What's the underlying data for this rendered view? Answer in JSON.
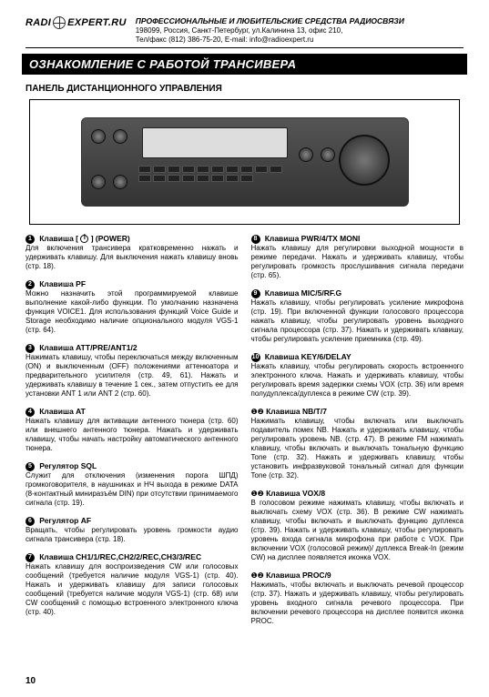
{
  "header": {
    "logo_left": "RADI",
    "logo_right": "EXPERT.RU",
    "line1": "ПРОФЕССИОНАЛЬНЫЕ И ЛЮБИТЕЛЬСКИЕ СРЕДСТВА РАДИОСВЯЗИ",
    "line2": "198099, Россия, Санкт-Петербург, ул.Калинина 13, офис 210,",
    "line3": "Тел/факс (812) 386-75-20, E-mail: info@radioexpert.ru"
  },
  "title": "ОЗНАКОМЛЕНИЕ С РАБОТОЙ ТРАНСИВЕРА",
  "subtitle": "ПАНЕЛЬ ДИСТАНЦИОННОГО УПРАВЛЕНИЯ",
  "left": [
    {
      "num": "1",
      "h": "Клавиша [ ⏻ ] (POWER)",
      "b": "Для включения трансивера кратковременно нажать и удерживать клавишу. Для выключения нажать клавишу вновь (стр. 18)."
    },
    {
      "num": "2",
      "h": "Клавиша PF",
      "b": "Можно назначить этой программируемой клавише выполнение какой-либо функции. По умолчанию назначена функция VOICE1. Для использования функций Voice Guide и Storage необходимо наличие опционального модуля VGS-1 (стр. 64)."
    },
    {
      "num": "3",
      "h": "Клавиша ATT/PRE/ANT1/2",
      "b": "Нажимать клавишу, чтобы переключаться между включенным (ON) и выключенным (OFF) положениями аттенюатора и предварительного усилителя (стр. 49, 61). Нажать и удерживать клавишу в течение 1 сек., затем отпустить ее для установки ANT 1 или ANT 2 (стр. 60)."
    },
    {
      "num": "4",
      "h": "Клавиша AT",
      "b": "Нажать клавишу для активации антенного тюнера (стр. 60) или внешнего антенного тюнера. Нажать и удерживать клавишу, чтобы начать настройку автоматического антенного тюнера."
    },
    {
      "num": "5",
      "h": "Регулятор SQL",
      "b": "Служит для отключения (изменения порога ШПД) громкоговорителя, в наушниках и НЧ выхода в режиме DATA (8-контактный миниразъём DIN) при отсутствии принимаемого сигнала (стр. 19)."
    },
    {
      "num": "6",
      "h": "Регулятор AF",
      "b": "Вращать, чтобы регулировать уровень громкости аудио сигнала трансивера (стр. 18)."
    },
    {
      "num": "7",
      "h": "Клавиша CH1/1/REC,CH2/2/REC,CH3/3/REC",
      "b": "Нажать клавишу для воспроизведения CW или голосовых сообщений (требуется наличие модуля VGS-1) (стр. 40). Нажать и удерживать клавишу для записи голосовых сообщений (требуется наличие модуля VGS-1) (стр. 68) или CW сообщений с помощью встроенного электронного ключа (стр. 40)."
    }
  ],
  "right": [
    {
      "num": "8",
      "h": "Клавиша PWR/4/TX MONI",
      "b": "Нажать клавишу для регулировки выходной мощности в режиме передачи. Нажать и удерживать клавишу, чтобы регулировать громкость прослушивания сигнала передачи (стр. 65)."
    },
    {
      "num": "9",
      "h": "Клавиша MIC/5/RF.G",
      "b": "Нажать клавишу, чтобы регулировать усиление микрофона (стр.  19). При включенной функции голосового процессора нажать клавишу, чтобы регулировать уровень выходного сигнала процессора (стр.  37). Нажать  и  удерживать клавишу, чтобы регулировать усиление приемника (стр. 49)."
    },
    {
      "num": "10",
      "h": "Клавиша KEY/6/DELAY",
      "b": "Нажать клавишу, чтобы регулировать скорость встроенного электронного ключа. Нажать и удерживать клавишу, чтобы регулировать время задержки схемы VOX (стр. 36) или время полудуплекса/дуплекса в режиме CW (стр. 39)."
    },
    {
      "num": "11",
      "h": "Клавиша NB/T/7",
      "pre": "❶❷",
      "b": "Нажимать клавишу, чтобы включать или выключать подавитель помех NB. Нажать и удерживать клавишу, чтобы регулировать уровень NB. (стр. 47). В режиме FM нажимать клавишу, чтобы включать и выключать тональную функцию Tone (стр. 32). Нажать и удерживать клавишу, чтобы установить инфразвуковой тональный сигнал для функции Tone (стр. 32)."
    },
    {
      "num": "12",
      "h": "Клавиша VOX/8",
      "pre": "❶❷",
      "b": "В голосовом режиме нажимать клавишу, чтобы включать и выключать схему VOX (стр. 36). В режиме CW нажимать клавишу, чтобы включать и выключать функцию дуплекса (стр. 39). Нажать и удерживать клавишу, чтобы регулировать уровень входа сигнала микрофона при работе с VOX. При включении VOX (голосовой режим)/ дуплекса Break-In (режим CW) на дисплее появляется иконка VOX."
    },
    {
      "num": "13",
      "h": "Клавиша PROC/9",
      "pre": "❶❷",
      "b": "Нажимать, чтобы включать и выключать речевой процессор (стр. 37). Нажать и удерживать клавишу, чтобы регулировать уровень входного сигнала речевого процессора. При включении речевого процессора на дисплее появится иконка PROC."
    }
  ],
  "page_number": "10"
}
